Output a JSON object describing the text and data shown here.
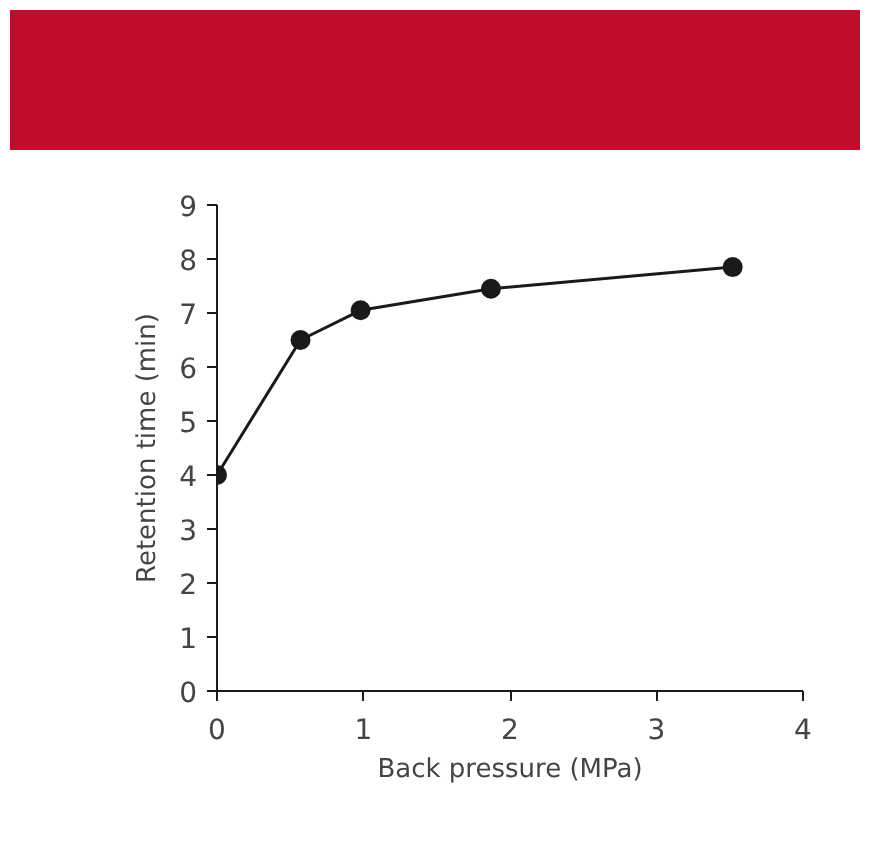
{
  "chart_data": {
    "type": "line",
    "xlabel": "Back pressure (MPa)",
    "ylabel": "Retention time (min)",
    "x": [
      0,
      0.57,
      0.98,
      1.87,
      3.52
    ],
    "series": [
      {
        "color": "#1a1a1a",
        "values": [
          4.0,
          6.5,
          7.05,
          7.45,
          7.85
        ]
      }
    ],
    "xlim": [
      0,
      4
    ],
    "ylim": [
      0,
      9
    ],
    "xticks": [
      0,
      1,
      2,
      3,
      4
    ],
    "yticks": [
      0,
      1,
      2,
      3,
      4,
      5,
      6,
      7,
      8,
      9
    ],
    "marker": "circle",
    "line_style": "solid",
    "grid": false
  }
}
